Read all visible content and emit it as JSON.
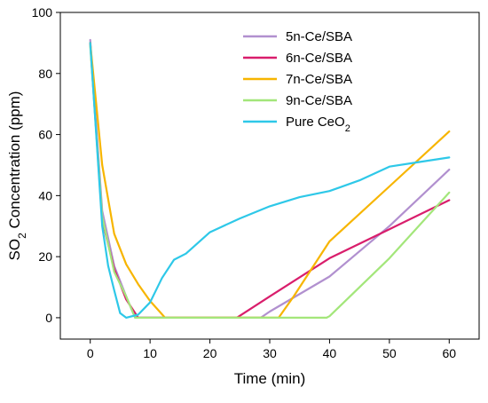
{
  "chart_data": {
    "type": "line",
    "xlabel": "Time (min)",
    "ylabel": "SO",
    "ylabel_subscript": "2",
    "ylabel_rest": " Concentration (ppm)",
    "xlim": [
      -5,
      65
    ],
    "ylim": [
      -7,
      100
    ],
    "x_ticks": [
      0,
      10,
      20,
      30,
      40,
      50,
      60
    ],
    "y_ticks": [
      0,
      20,
      40,
      60,
      80,
      100
    ],
    "grid": false,
    "legend_position": "top-right",
    "series": [
      {
        "name": "5n-Ce/SBA",
        "color": "#b190cf",
        "points": [
          [
            0,
            91
          ],
          [
            2,
            35
          ],
          [
            4,
            17
          ],
          [
            6,
            7
          ],
          [
            7.5,
            0
          ],
          [
            28.5,
            0
          ],
          [
            30,
            2
          ],
          [
            40,
            13.5
          ],
          [
            50,
            30
          ],
          [
            60,
            48.5
          ]
        ]
      },
      {
        "name": "6n-Ce/SBA",
        "color": "#d91e6c",
        "points": [
          [
            0,
            90
          ],
          [
            2,
            32
          ],
          [
            4,
            16
          ],
          [
            6,
            6
          ],
          [
            8,
            0
          ],
          [
            24.5,
            0
          ],
          [
            30,
            7
          ],
          [
            40,
            19.5
          ],
          [
            50,
            29
          ],
          [
            60,
            38.5
          ]
        ]
      },
      {
        "name": "7n-Ce/SBA",
        "color": "#f7b500",
        "points": [
          [
            0,
            90
          ],
          [
            2,
            50
          ],
          [
            4,
            27.5
          ],
          [
            6,
            17.5
          ],
          [
            8,
            11
          ],
          [
            10,
            5.5
          ],
          [
            12.5,
            0
          ],
          [
            31.5,
            0
          ],
          [
            34,
            7
          ],
          [
            40,
            25
          ],
          [
            50,
            43
          ],
          [
            60,
            61
          ]
        ]
      },
      {
        "name": "9n-Ce/SBA",
        "color": "#a3e67a",
        "points": [
          [
            0,
            89
          ],
          [
            2,
            33
          ],
          [
            4,
            15
          ],
          [
            6,
            7
          ],
          [
            7.5,
            0
          ],
          [
            39.5,
            0
          ],
          [
            40,
            0.5
          ],
          [
            50,
            19.5
          ],
          [
            60,
            41
          ]
        ]
      },
      {
        "name": "Pure CeO",
        "name_subscript": "2",
        "color": "#2ec8e8",
        "points": [
          [
            0,
            90
          ],
          [
            2,
            30
          ],
          [
            3,
            17
          ],
          [
            4,
            9
          ],
          [
            5,
            1.5
          ],
          [
            6,
            0
          ],
          [
            8,
            1
          ],
          [
            10,
            5
          ],
          [
            12,
            13
          ],
          [
            14,
            19
          ],
          [
            16,
            21
          ],
          [
            20,
            28
          ],
          [
            25,
            32.5
          ],
          [
            30,
            36.5
          ],
          [
            35,
            39.5
          ],
          [
            40,
            41.5
          ],
          [
            45,
            45
          ],
          [
            50,
            49.5
          ],
          [
            55,
            51
          ],
          [
            60,
            52.5
          ]
        ]
      }
    ]
  }
}
